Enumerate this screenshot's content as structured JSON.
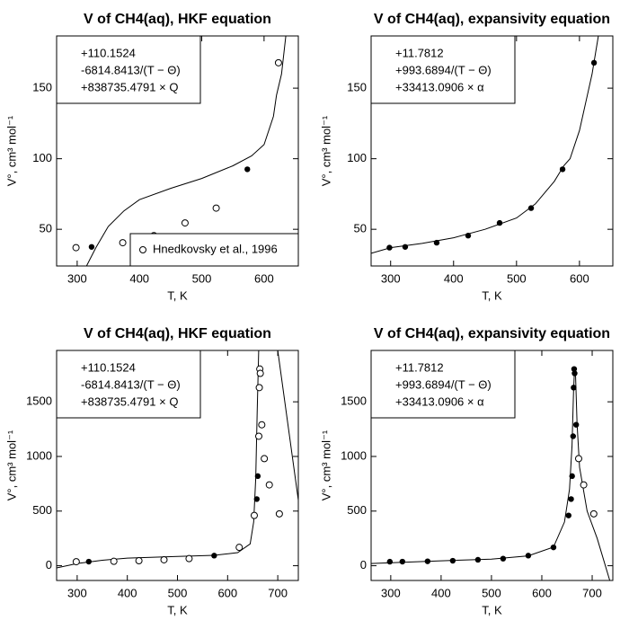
{
  "chart_data": [
    {
      "type": "scatter",
      "title": "V of CH4(aq), HKF equation",
      "xlabel": "T, K",
      "ylabel": "V°, cm³ mol⁻¹",
      "annotations": [
        "+110.1524",
        "-6814.8413/(T − Θ)",
        "+838735.4791 × Q"
      ],
      "xlim": [
        267,
        655
      ],
      "ylim": [
        24,
        187
      ],
      "xticks": [
        300,
        400,
        500,
        600
      ],
      "yticks": [
        50,
        100,
        150
      ],
      "legend": "lower right",
      "series": [
        {
          "style": "line",
          "color": "#000000",
          "x": [
            315,
            330,
            350,
            375,
            400,
            450,
            500,
            550,
            580,
            600,
            615,
            620,
            628,
            635
          ],
          "values": [
            24,
            37,
            52,
            63,
            71,
            79,
            86,
            95,
            102,
            110,
            130,
            145,
            160,
            187
          ]
        },
        {
          "style": "filled",
          "color": "#000000",
          "x": [
            323.15,
            573.15
          ],
          "values": [
            37.5,
            92.5
          ]
        },
        {
          "style": "open",
          "color": "#000000",
          "name": "Hnedkovsky et al., 1996",
          "x": [
            298.15,
            373.15,
            423.15,
            473.15,
            523.15,
            623.15
          ],
          "values": [
            37,
            40.5,
            45.5,
            54.5,
            65,
            168
          ]
        }
      ]
    },
    {
      "type": "scatter",
      "title": "V of CH4(aq), expansivity equation",
      "xlabel": "T, K",
      "ylabel": "V°, cm³ mol⁻¹",
      "annotations": [
        "+11.7812",
        "+993.6894/(T − Θ)",
        "+33413.0906 × α"
      ],
      "xlim": [
        269,
        653
      ],
      "ylim": [
        24,
        187
      ],
      "xticks": [
        300,
        400,
        500,
        600
      ],
      "yticks": [
        50,
        100,
        150
      ],
      "series": [
        {
          "style": "line",
          "color": "#000000",
          "x": [
            269,
            300,
            350,
            400,
            450,
            500,
            530,
            560,
            575,
            585,
            600,
            610,
            620,
            630
          ],
          "values": [
            33,
            37,
            40,
            44,
            50,
            58,
            68,
            84,
            95,
            100,
            120,
            140,
            160,
            187
          ]
        },
        {
          "style": "filled",
          "color": "#000000",
          "x": [
            298.15,
            323.15,
            373.15,
            423.15,
            473.15,
            523.15,
            573.15,
            623.15
          ],
          "values": [
            37,
            37.5,
            40.5,
            45.5,
            54.5,
            65,
            92.5,
            168
          ]
        }
      ]
    },
    {
      "type": "scatter",
      "title": "V of CH4(aq), HKF equation",
      "xlabel": "T, K",
      "ylabel": "V°, cm³ mol⁻¹",
      "annotations": [
        "+110.1524",
        "-6814.8413/(T − Θ)",
        "+838735.4791 × Q"
      ],
      "xlim": [
        259,
        741
      ],
      "ylim": [
        -135,
        1970
      ],
      "xticks": [
        300,
        400,
        500,
        600,
        700
      ],
      "yticks": [
        0,
        500,
        1000,
        1500
      ],
      "series": [
        {
          "style": "line",
          "color": "#000000",
          "x": [
            259,
            300,
            350,
            400,
            500,
            573,
            620,
            645,
            652,
            656,
            659,
            662,
            null,
            700,
            741
          ],
          "values": [
            -20,
            20,
            50,
            70,
            85,
            95,
            120,
            200,
            400,
            800,
            1400,
            1970,
            null,
            1970,
            600
          ]
        },
        {
          "style": "filled",
          "color": "#000000",
          "x": [
            323.15,
            573.15,
            658.15,
            660.15
          ],
          "values": [
            37.5,
            92.5,
            610,
            820
          ]
        },
        {
          "style": "open",
          "color": "#000000",
          "x": [
            298.15,
            373.15,
            423.15,
            473.15,
            523.15,
            623.15,
            653.15,
            662.15,
            663.15,
            664.15,
            665.15,
            668.15,
            673.15,
            683.15,
            703.15
          ],
          "values": [
            37,
            40.5,
            45.5,
            54.5,
            65,
            168,
            460,
            1185,
            1630,
            1800,
            1760,
            1290,
            980,
            740,
            475
          ]
        }
      ]
    },
    {
      "type": "scatter",
      "title": "V of CH4(aq), expansivity equation",
      "xlabel": "T, K",
      "ylabel": "V°, cm³ mol⁻¹",
      "annotations": [
        "+11.7812",
        "+993.6894/(T − Θ)",
        "+33413.0906 × α"
      ],
      "xlim": [
        261,
        741
      ],
      "ylim": [
        -135,
        1970
      ],
      "xticks": [
        300,
        400,
        500,
        600,
        700
      ],
      "yticks": [
        0,
        500,
        1000,
        1500
      ],
      "series": [
        {
          "style": "line",
          "color": "#000000",
          "x": [
            261,
            400,
            500,
            573,
            623,
            645,
            655,
            660,
            663,
            665,
            667,
            670,
            675,
            690,
            710,
            735
          ],
          "values": [
            20,
            45,
            60,
            90,
            170,
            400,
            700,
            1100,
            1600,
            1800,
            1750,
            1300,
            900,
            500,
            250,
            -135
          ]
        },
        {
          "style": "filled",
          "color": "#000000",
          "x": [
            298.15,
            323.15,
            373.15,
            423.15,
            473.15,
            523.15,
            573.15,
            623.15,
            653.15,
            658.15,
            660.15,
            662.15,
            663.15,
            664.15,
            665.15,
            668.15
          ],
          "values": [
            37,
            37.5,
            40.5,
            45.5,
            54.5,
            65,
            92.5,
            168,
            460,
            610,
            820,
            1185,
            1630,
            1800,
            1760,
            1290
          ]
        },
        {
          "style": "open",
          "color": "#000000",
          "x": [
            673.15,
            683.15,
            703.15
          ],
          "values": [
            980,
            740,
            475
          ]
        }
      ]
    }
  ]
}
